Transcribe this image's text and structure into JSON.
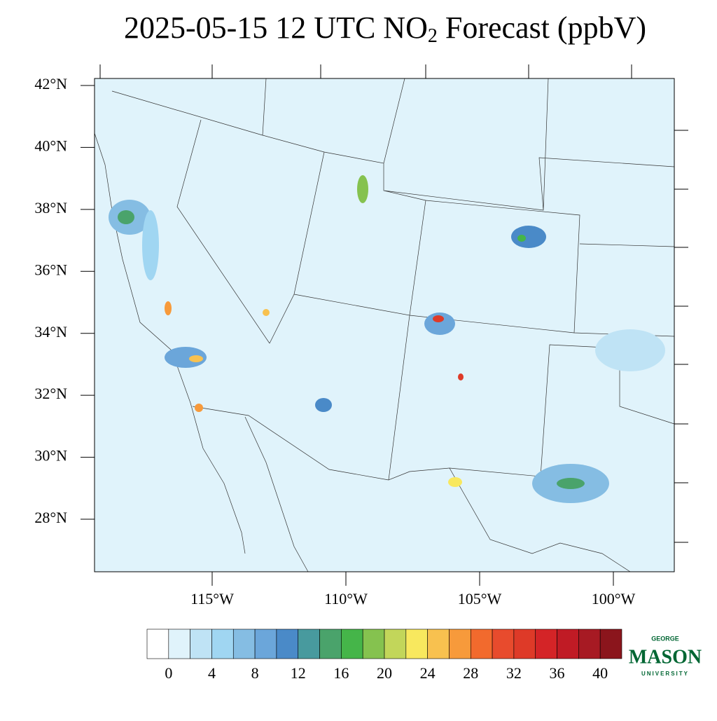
{
  "title": {
    "before": "2025-05-15 12 UTC NO",
    "subscript": "2",
    "after": " Forecast (ppbV)"
  },
  "map": {
    "lat_ticks": [
      {
        "value": 42,
        "label": "42°N"
      },
      {
        "value": 40,
        "label": "40°N"
      },
      {
        "value": 38,
        "label": "38°N"
      },
      {
        "value": 36,
        "label": "36°N"
      },
      {
        "value": 34,
        "label": "34°N"
      },
      {
        "value": 32,
        "label": "32°N"
      },
      {
        "value": 30,
        "label": "30°N"
      },
      {
        "value": 28,
        "label": "28°N"
      }
    ],
    "lon_ticks": [
      {
        "value": -115,
        "label": "115°W"
      },
      {
        "value": -110,
        "label": "110°W"
      },
      {
        "value": -105,
        "label": "105°W"
      },
      {
        "value": -100,
        "label": "100°W"
      }
    ]
  },
  "colorbar": {
    "colors": [
      "#ffffff",
      "#e0f3fb",
      "#bfe3f5",
      "#a0d6f2",
      "#85bde3",
      "#6ba6da",
      "#4a8ac8",
      "#489a9e",
      "#4aa36b",
      "#45b549",
      "#85c24f",
      "#c2d65a",
      "#f8e85e",
      "#f8c14f",
      "#f79a3b",
      "#f26a2d",
      "#e84b2d",
      "#de3a28",
      "#d42427",
      "#c01b25",
      "#a71a23",
      "#8b151c"
    ],
    "ticks": [
      0,
      4,
      8,
      12,
      16,
      20,
      24,
      28,
      32,
      36,
      40
    ]
  },
  "logo": {
    "top": "GEORGE",
    "main": "MASON",
    "bottom": "UNIVERSITY"
  }
}
